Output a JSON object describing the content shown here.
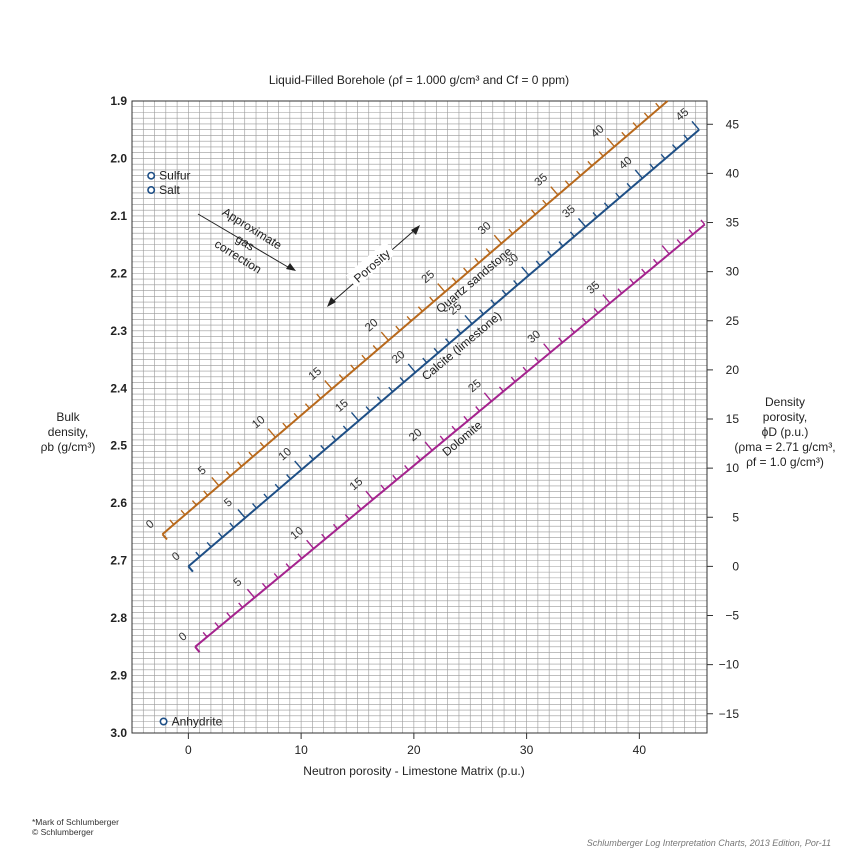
{
  "chart_data": {
    "type": "line",
    "title": "Liquid-Filled Borehole (ρf = 1.000 g/cm³ and Cf = 0 ppm)",
    "xlabel": "Neutron porosity - Limestone Matrix (p.u.)",
    "ylabel_lines": [
      "Bulk",
      "density,",
      "ρb (g/cm³)"
    ],
    "y2label_lines": [
      "Density",
      "porosity,",
      "ϕD (p.u.)",
      "(ρma = 2.71 g/cm³,",
      "ρf = 1.0 g/cm³)"
    ],
    "xlim": [
      -5,
      46
    ],
    "ylim": [
      1.9,
      3.0
    ],
    "y_inverted": true,
    "x_ticks": [
      0,
      10,
      20,
      30,
      40
    ],
    "y_ticks": [
      1.9,
      2.0,
      2.1,
      2.2,
      2.3,
      2.4,
      2.5,
      2.6,
      2.7,
      2.8,
      2.9,
      3.0
    ],
    "y2_ticks": [
      45,
      40,
      35,
      30,
      25,
      20,
      15,
      10,
      5,
      0,
      -5,
      -10,
      -15
    ],
    "y2_tick_labels": [
      "45",
      "40",
      "35",
      "30",
      "25",
      "20",
      "15",
      "10",
      "5",
      "0",
      "−5",
      "−10",
      "−15"
    ],
    "grid": true,
    "series": [
      {
        "name": "Quartz sandstone",
        "color": "#b8691c",
        "points": [
          [
            -2.3,
            2.654
          ],
          [
            42.5,
            1.9
          ]
        ],
        "porosity_marks": [
          0,
          5,
          10,
          15,
          20,
          25,
          30,
          35,
          40
        ],
        "porosity_at_start": 0,
        "porosity_at_end": 44.7,
        "label_angle": -40
      },
      {
        "name": "Calcite (limestone)",
        "color": "#1e4f86",
        "points": [
          [
            0,
            2.71
          ],
          [
            45.3,
            1.95
          ]
        ],
        "porosity_marks": [
          0,
          5,
          10,
          15,
          20,
          25,
          30,
          35,
          40,
          45
        ],
        "porosity_at_start": 0,
        "porosity_at_end": 45,
        "label_angle": -40
      },
      {
        "name": "Dolomite",
        "color": "#a5238e",
        "points": [
          [
            0.6,
            2.85
          ],
          [
            45.8,
            2.115
          ]
        ],
        "porosity_marks": [
          0,
          5,
          10,
          15,
          20,
          25,
          30,
          35
        ],
        "porosity_at_start": 0,
        "porosity_at_end": 43,
        "label_angle": -40
      }
    ],
    "minerals": [
      {
        "name": "Sulfur",
        "x": -3.3,
        "y": 2.03
      },
      {
        "name": "Salt",
        "x": -3.3,
        "y": 2.055
      },
      {
        "name": "Anhydrite",
        "x": -2.2,
        "y": 2.98
      }
    ],
    "annotations": {
      "gas_correction": [
        "Approximate",
        "gas",
        "correction"
      ],
      "porosity_arrow": "Porosity"
    }
  },
  "footnote_lines": [
    "*Mark of Schlumberger",
    "© Schlumberger"
  ],
  "source": "Schlumberger Log Interpretation Charts, 2013 Edition, Por-11"
}
